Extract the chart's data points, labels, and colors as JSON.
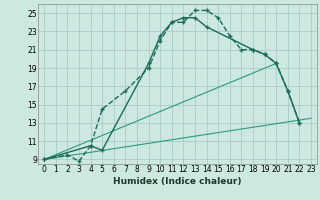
{
  "xlabel": "Humidex (Indice chaleur)",
  "bg_color": "#cce8e0",
  "grid_color": "#aaccC4",
  "line_color": "#1a6b5a",
  "line_color2": "#2a9a80",
  "xlim": [
    -0.5,
    23.5
  ],
  "ylim": [
    8.5,
    26.0
  ],
  "xticks": [
    0,
    1,
    2,
    3,
    4,
    5,
    6,
    7,
    8,
    9,
    10,
    11,
    12,
    13,
    14,
    15,
    16,
    17,
    18,
    19,
    20,
    21,
    22,
    23
  ],
  "yticks": [
    9,
    11,
    13,
    15,
    17,
    19,
    21,
    23,
    25
  ],
  "series1_x": [
    0,
    2,
    3,
    4,
    5,
    7,
    9,
    10,
    11,
    12,
    13,
    14,
    15,
    16,
    17,
    18,
    19,
    20,
    21,
    22
  ],
  "series1_y": [
    9,
    9.5,
    8.8,
    10.5,
    14.5,
    16.5,
    19.0,
    22.0,
    24.0,
    24.0,
    25.3,
    25.3,
    24.5,
    22.5,
    21.0,
    21.0,
    20.5,
    19.5,
    16.5,
    13.0
  ],
  "series2_x": [
    0,
    4,
    5,
    9,
    10,
    11,
    12,
    13,
    14,
    18,
    19,
    20,
    21,
    22
  ],
  "series2_y": [
    9,
    10.5,
    10.0,
    19.5,
    22.5,
    24.0,
    24.5,
    24.5,
    23.5,
    21.0,
    20.5,
    19.5,
    16.5,
    13.0
  ],
  "series3_x": [
    0,
    23
  ],
  "series3_y": [
    9,
    13.5
  ],
  "series4_x": [
    0,
    20
  ],
  "series4_y": [
    9,
    19.5
  ]
}
